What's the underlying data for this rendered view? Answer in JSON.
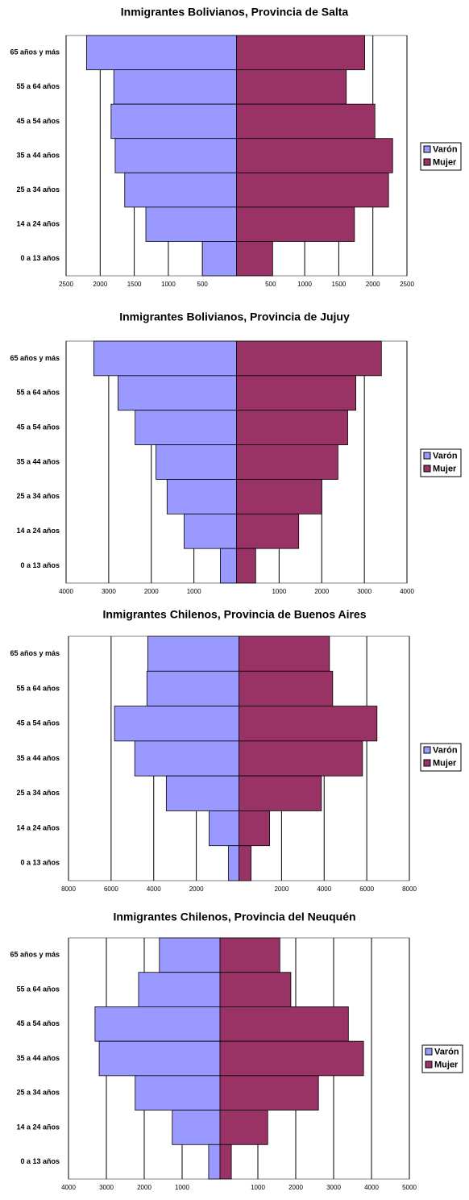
{
  "chart_data": [
    {
      "type": "bar",
      "title": "Inmigrantes Bolivianos, Provincia de Salta",
      "categories": [
        "65 años y más",
        "55 a 64 años",
        "45 a 54 años",
        "35 a 44 años",
        "25 a 34 años",
        "14 a 24 años",
        "0 a 13 años"
      ],
      "series": [
        {
          "name": "Varón",
          "color": "#9999ff",
          "values": [
            -2200,
            -1800,
            -1840,
            -1780,
            -1640,
            -1330,
            -500
          ]
        },
        {
          "name": "Mujer",
          "color": "#993366",
          "values": [
            1880,
            1610,
            2030,
            2290,
            2230,
            1730,
            530
          ]
        }
      ],
      "xlim": [
        -2500,
        2500
      ],
      "xticks": [
        {
          "value": -2500,
          "label": "2500"
        },
        {
          "value": -2000,
          "label": "2000"
        },
        {
          "value": -1500,
          "label": "1500"
        },
        {
          "value": -1000,
          "label": "1000"
        },
        {
          "value": -500,
          "label": "500"
        },
        500,
        1000,
        1500,
        2000,
        2500
      ],
      "grid": true,
      "legend": "right"
    },
    {
      "type": "bar",
      "title": "Inmigrantes Bolivianos, Provincia de Jujuy",
      "categories": [
        "65 años y más",
        "55 a 64 años",
        "45 a 54 años",
        "35 a 44 años",
        "25 a 34 años",
        "14 a 24 años",
        "0 a 13 años"
      ],
      "series": [
        {
          "name": "Varón",
          "color": "#9999ff",
          "values": [
            -3350,
            -2780,
            -2380,
            -1890,
            -1630,
            -1230,
            -380
          ]
        },
        {
          "name": "Mujer",
          "color": "#993366",
          "values": [
            3400,
            2800,
            2610,
            2380,
            2000,
            1460,
            450
          ]
        }
      ],
      "xlim": [
        -4000,
        4000
      ],
      "xticks": [
        {
          "value": -4000,
          "label": "4000"
        },
        {
          "value": -3000,
          "label": "3000"
        },
        {
          "value": -2000,
          "label": "2000"
        },
        {
          "value": -1000,
          "label": "1000"
        },
        1000,
        2000,
        3000,
        4000
      ],
      "grid": true,
      "legend": "right"
    },
    {
      "type": "bar",
      "title": "Inmigrantes Chilenos, Provincia de Buenos Aires",
      "categories": [
        "65 años y más",
        "55 a 64 años",
        "45 a 54 años",
        "35 a 44 años",
        "25 a 34 años",
        "14 a 24 años",
        "0 a 13 años"
      ],
      "series": [
        {
          "name": "Varón",
          "color": "#9999ff",
          "values": [
            -4280,
            -4320,
            -5840,
            -4890,
            -3410,
            -1400,
            -490
          ]
        },
        {
          "name": "Mujer",
          "color": "#993366",
          "values": [
            4250,
            4400,
            6480,
            5800,
            3870,
            1440,
            570
          ]
        }
      ],
      "xlim": [
        -8000,
        8000
      ],
      "xticks": [
        {
          "value": -8000,
          "label": "8000"
        },
        {
          "value": -6000,
          "label": "6000"
        },
        {
          "value": -4000,
          "label": "4000"
        },
        {
          "value": -2000,
          "label": "2000"
        },
        2000,
        4000,
        6000,
        8000
      ],
      "grid": true,
      "legend": "right"
    },
    {
      "type": "bar",
      "title": "Inmigrantes Chilenos, Provincia del Neuquén",
      "categories": [
        "65 años y más",
        "55 a 64 años",
        "45 a 54 años",
        "35 a 44 años",
        "25 a 34 años",
        "14 a 24 años",
        "0 a 13 años"
      ],
      "series": [
        {
          "name": "Varón",
          "color": "#9999ff",
          "values": [
            -1600,
            -2150,
            -3300,
            -3190,
            -2240,
            -1260,
            -300
          ]
        },
        {
          "name": "Mujer",
          "color": "#993366",
          "values": [
            1580,
            1870,
            3390,
            3790,
            2600,
            1260,
            300
          ]
        }
      ],
      "xlim": [
        -4000,
        5000
      ],
      "xticks": [
        {
          "value": -4000,
          "label": "4000"
        },
        {
          "value": -3000,
          "label": "3000"
        },
        {
          "value": -2000,
          "label": "2000"
        },
        {
          "value": -1000,
          "label": "1000"
        },
        1000,
        2000,
        3000,
        4000,
        5000
      ],
      "grid": true,
      "legend": "right"
    }
  ]
}
